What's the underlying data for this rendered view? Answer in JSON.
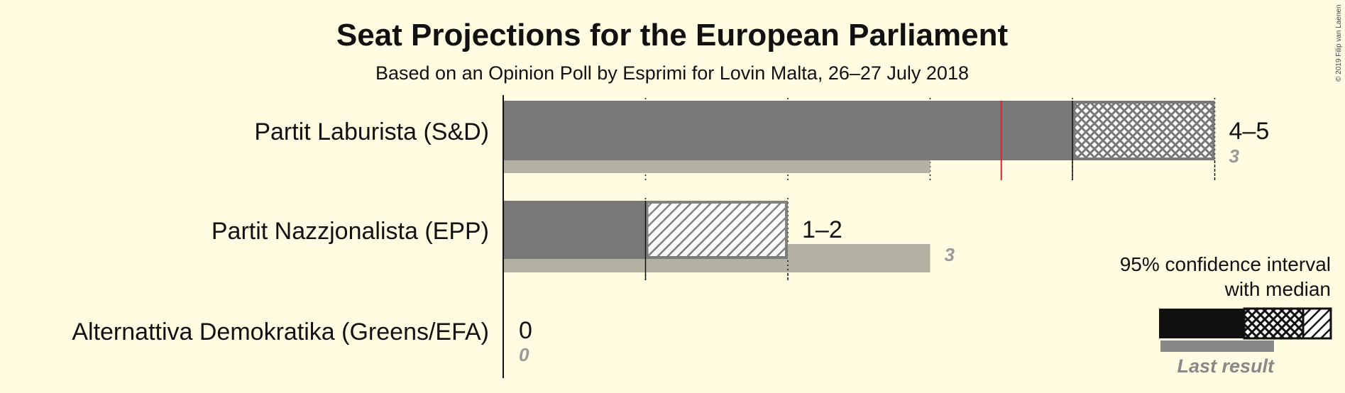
{
  "chart_data": {
    "type": "bar",
    "title": "Seat Projections for the European Parliament",
    "subtitle": "Based on an Opinion Poll by Esprimi for Lovin Malta, 26–27 July 2018",
    "majority_line": 3.5,
    "xlim": [
      0,
      5
    ],
    "parties": [
      {
        "name": "Partit Laburista (S&D)",
        "ci_low": 4,
        "median": 4,
        "ci_high": 5,
        "range_label": "4–5",
        "last_result": 3,
        "last_label": "3"
      },
      {
        "name": "Partit Nazzjonalista (EPP)",
        "ci_low": 1,
        "median": 1,
        "ci_high": 2,
        "range_label": "1–2",
        "last_result": 3,
        "last_label": "3"
      },
      {
        "name": "Alternattiva Demokratika (Greens/EFA)",
        "ci_low": 0,
        "median": 0,
        "ci_high": 0,
        "range_label": "0",
        "last_result": 0,
        "last_label": "0"
      }
    ]
  },
  "legend": {
    "line1": "95% confidence interval",
    "line2": "with median",
    "last_result": "Last result"
  },
  "copyright": "© 2019 Filip van Laenen",
  "colors": {
    "background": "#fffce2",
    "bar": "#787878",
    "last_result": "#b3b2a2",
    "majority": "#e0202a",
    "legend_dark": "#111111"
  }
}
